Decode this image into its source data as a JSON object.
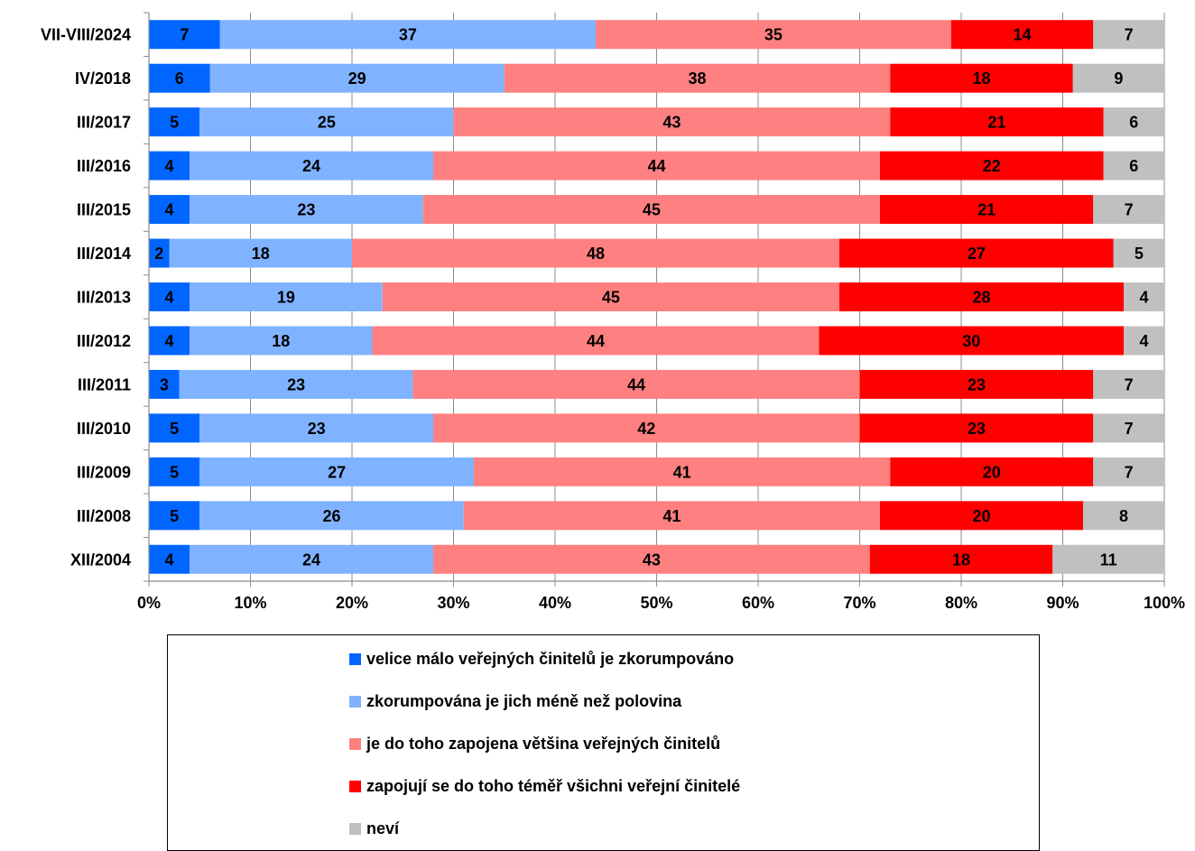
{
  "chart_data": {
    "type": "bar",
    "orientation": "horizontal",
    "stacked": "percent",
    "categories": [
      "VII-VIII/2024",
      "IV/2018",
      "III/2017",
      "III/2016",
      "III/2015",
      "III/2014",
      "III/2013",
      "III/2012",
      "III/2011",
      "III/2010",
      "III/2009",
      "III/2008",
      "XII/2004"
    ],
    "series": [
      {
        "name": "velice málo veřejných činitelů je zkorumpováno",
        "color": "#0066ff",
        "values": [
          7,
          6,
          5,
          4,
          4,
          2,
          4,
          4,
          3,
          5,
          5,
          5,
          4
        ]
      },
      {
        "name": "zkorumpována je jich méně než polovina",
        "color": "#80b3ff",
        "values": [
          37,
          29,
          25,
          24,
          23,
          18,
          19,
          18,
          23,
          23,
          27,
          26,
          24
        ]
      },
      {
        "name": "je do toho zapojena většina veřejných činitelů",
        "color": "#ff8080",
        "values": [
          35,
          38,
          43,
          44,
          45,
          48,
          45,
          44,
          44,
          42,
          41,
          41,
          43
        ]
      },
      {
        "name": "zapojují se do toho téměř všichni veřejní činitelé",
        "color": "#ff0000",
        "values": [
          14,
          18,
          21,
          22,
          21,
          27,
          28,
          30,
          23,
          23,
          20,
          20,
          18
        ]
      },
      {
        "name": "neví",
        "color": "#c0c0c0",
        "values": [
          7,
          9,
          6,
          6,
          7,
          5,
          4,
          4,
          7,
          7,
          7,
          8,
          11
        ]
      }
    ],
    "xlim": [
      0,
      100
    ],
    "x_ticks": [
      "0%",
      "10%",
      "20%",
      "30%",
      "40%",
      "50%",
      "60%",
      "70%",
      "80%",
      "90%",
      "100%"
    ],
    "grid": true,
    "legend_position": "bottom"
  }
}
